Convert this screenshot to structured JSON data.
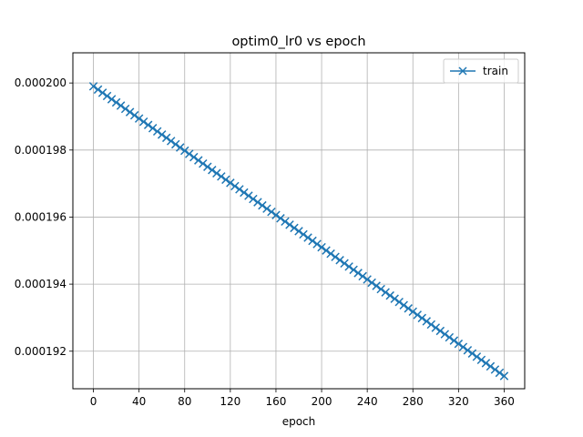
{
  "chart_data": {
    "type": "line",
    "title": "optim0_lr0 vs epoch",
    "xlabel": "epoch",
    "ylabel": "",
    "xlim": [
      -18,
      378
    ],
    "ylim": [
      0.00019088,
      0.0002009
    ],
    "x_ticks": [
      0,
      40,
      80,
      120,
      160,
      200,
      240,
      280,
      320,
      360
    ],
    "y_ticks": [
      0.000192,
      0.000194,
      0.000196,
      0.000198,
      0.0002
    ],
    "y_tick_labels": [
      "0.000192",
      "0.000194",
      "0.000196",
      "0.000198",
      "0.000200"
    ],
    "grid": true,
    "legend_position": "top-right",
    "series": [
      {
        "name": "train",
        "color": "#1f77b4",
        "marker": "x",
        "x_start": 0,
        "x_end": 360,
        "x_step": 4,
        "y_start": 0.0001999,
        "y_end": 0.00019126
      }
    ]
  }
}
